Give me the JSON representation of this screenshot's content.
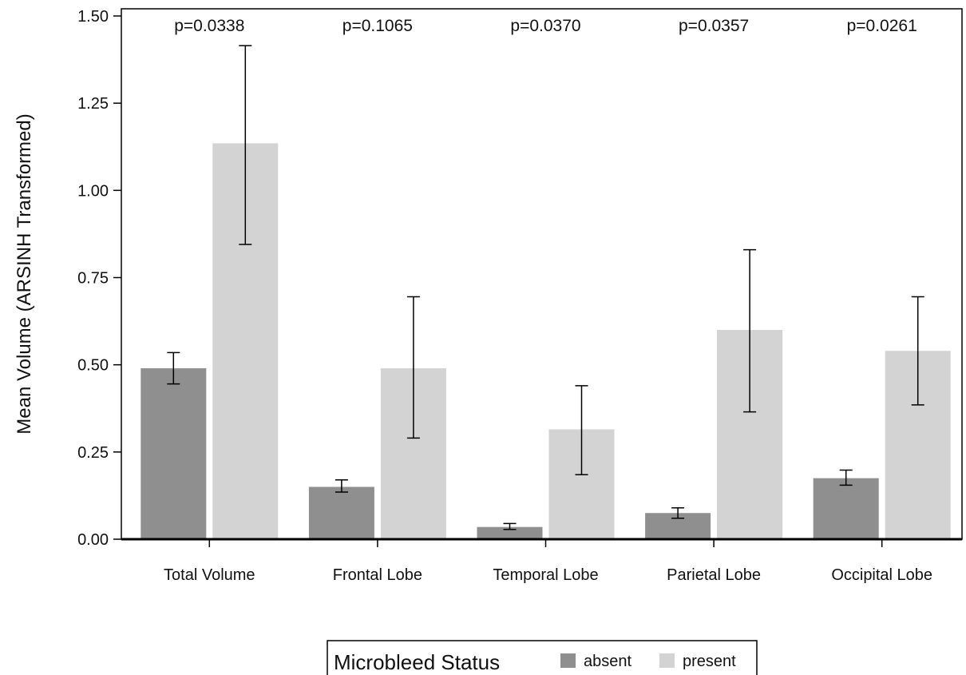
{
  "chart_data": {
    "type": "bar",
    "title": "",
    "xlabel": "",
    "ylabel": "Mean Volume (ARSINH Transformed)",
    "ylim": [
      0,
      1.5
    ],
    "yticks": [
      "0.00",
      "0.25",
      "0.50",
      "0.75",
      "1.00",
      "1.25",
      "1.50"
    ],
    "categories": [
      "Total Volume",
      "Frontal Lobe",
      "Temporal Lobe",
      "Parietal Lobe",
      "Occipital Lobe"
    ],
    "p_values": [
      "p=0.0338",
      "p=0.1065",
      "p=0.0370",
      "p=0.0357",
      "p=0.0261"
    ],
    "series": [
      {
        "name": "absent",
        "color": "#8f8f8f",
        "values": [
          0.49,
          0.15,
          0.035,
          0.075,
          0.175
        ],
        "error_low": [
          0.445,
          0.135,
          0.028,
          0.06,
          0.155
        ],
        "error_high": [
          0.535,
          0.17,
          0.045,
          0.09,
          0.198
        ]
      },
      {
        "name": "present",
        "color": "#d3d3d3",
        "values": [
          1.135,
          0.49,
          0.315,
          0.6,
          0.54
        ],
        "error_low": [
          0.845,
          0.29,
          0.185,
          0.365,
          0.385
        ],
        "error_high": [
          1.415,
          0.695,
          0.44,
          0.83,
          0.695
        ]
      }
    ],
    "legend": {
      "title": "Microbleed Status",
      "position": "bottom-center"
    },
    "grid": false
  }
}
